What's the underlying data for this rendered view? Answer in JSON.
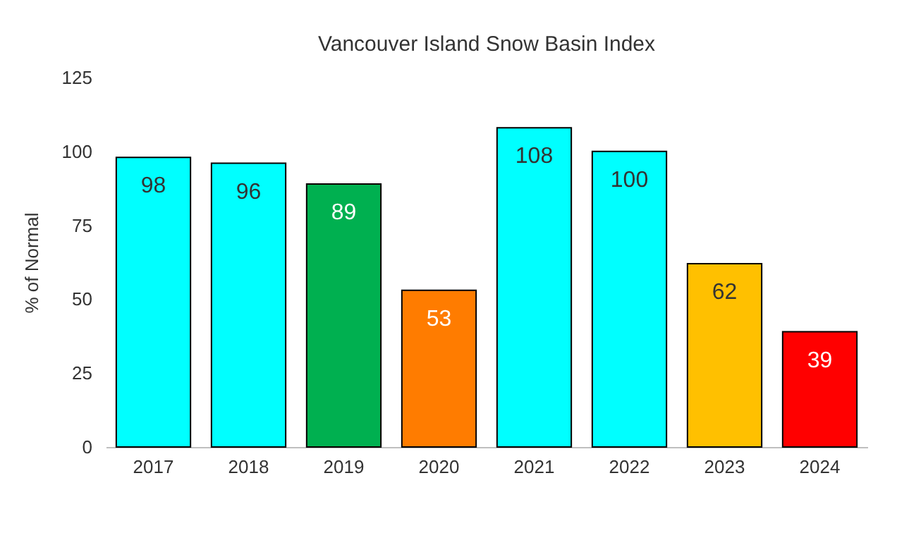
{
  "chart_data": {
    "type": "bar",
    "title": "Vancouver Island Snow Basin Index",
    "ylabel": "% of Normal",
    "categories": [
      "2017",
      "2018",
      "2019",
      "2020",
      "2021",
      "2022",
      "2023",
      "2024"
    ],
    "values": [
      98,
      96,
      89,
      53,
      108,
      100,
      62,
      39
    ],
    "colors": [
      "#00ffff",
      "#00ffff",
      "#00b050",
      "#ff7c00",
      "#00ffff",
      "#00ffff",
      "#ffc000",
      "#ff0000"
    ],
    "ylim": [
      0,
      125
    ],
    "yticks": [
      0,
      25,
      50,
      75,
      100,
      125
    ],
    "grid": false,
    "data_labels": true
  }
}
